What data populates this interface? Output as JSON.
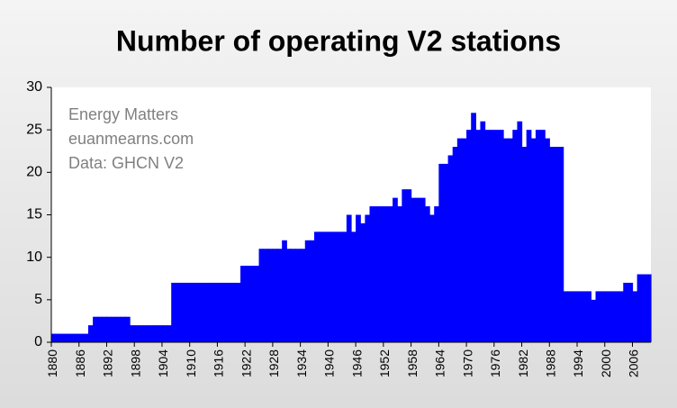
{
  "chart_data": {
    "type": "step-area",
    "title": "Number of operating V2 stations",
    "annotations": [
      "Energy Matters",
      "euanmearns.com",
      "Data: GHCN V2"
    ],
    "color": "#0000ff",
    "x": [
      1880,
      1881,
      1882,
      1883,
      1884,
      1885,
      1886,
      1887,
      1888,
      1889,
      1890,
      1891,
      1892,
      1893,
      1894,
      1895,
      1896,
      1897,
      1898,
      1899,
      1900,
      1901,
      1902,
      1903,
      1904,
      1905,
      1906,
      1907,
      1908,
      1909,
      1910,
      1911,
      1912,
      1913,
      1914,
      1915,
      1916,
      1917,
      1918,
      1919,
      1920,
      1921,
      1922,
      1923,
      1924,
      1925,
      1926,
      1927,
      1928,
      1929,
      1930,
      1931,
      1932,
      1933,
      1934,
      1935,
      1936,
      1937,
      1938,
      1939,
      1940,
      1941,
      1942,
      1943,
      1944,
      1945,
      1946,
      1947,
      1948,
      1949,
      1950,
      1951,
      1952,
      1953,
      1954,
      1955,
      1956,
      1957,
      1958,
      1959,
      1960,
      1961,
      1962,
      1963,
      1964,
      1965,
      1966,
      1967,
      1968,
      1969,
      1970,
      1971,
      1972,
      1973,
      1974,
      1975,
      1976,
      1977,
      1978,
      1979,
      1980,
      1981,
      1982,
      1983,
      1984,
      1985,
      1986,
      1987,
      1988,
      1989,
      1990,
      1991,
      1992,
      1993,
      1994,
      1995,
      1996,
      1997,
      1998,
      1999,
      2000,
      2001,
      2002,
      2003,
      2004,
      2005,
      2006,
      2007,
      2008,
      2009
    ],
    "values": [
      1,
      1,
      1,
      1,
      1,
      1,
      1,
      1,
      2,
      3,
      3,
      3,
      3,
      3,
      3,
      3,
      3,
      2,
      2,
      2,
      2,
      2,
      2,
      2,
      2,
      2,
      7,
      7,
      7,
      7,
      7,
      7,
      7,
      7,
      7,
      7,
      7,
      7,
      7,
      7,
      7,
      9,
      9,
      9,
      9,
      11,
      11,
      11,
      11,
      11,
      12,
      11,
      11,
      11,
      11,
      12,
      12,
      13,
      13,
      13,
      13,
      13,
      13,
      13,
      15,
      13,
      15,
      14,
      15,
      16,
      16,
      16,
      16,
      16,
      17,
      16,
      18,
      18,
      17,
      17,
      17,
      16,
      15,
      16,
      21,
      21,
      22,
      23,
      24,
      24,
      25,
      27,
      25,
      26,
      25,
      25,
      25,
      25,
      24,
      24,
      25,
      26,
      23,
      25,
      24,
      25,
      25,
      24,
      23,
      23,
      23,
      6,
      6,
      6,
      6,
      6,
      6,
      5,
      6,
      6,
      6,
      6,
      6,
      6,
      7,
      7,
      6,
      8,
      8,
      8
    ],
    "xlim": [
      1880,
      2010
    ],
    "xticks": [
      1880,
      1886,
      1892,
      1898,
      1904,
      1910,
      1916,
      1922,
      1928,
      1934,
      1940,
      1946,
      1952,
      1958,
      1964,
      1970,
      1976,
      1982,
      1988,
      1994,
      2000,
      2006
    ],
    "ylim": [
      0,
      30
    ],
    "yticks": [
      0,
      5,
      10,
      15,
      20,
      25,
      30
    ],
    "grid": false
  }
}
